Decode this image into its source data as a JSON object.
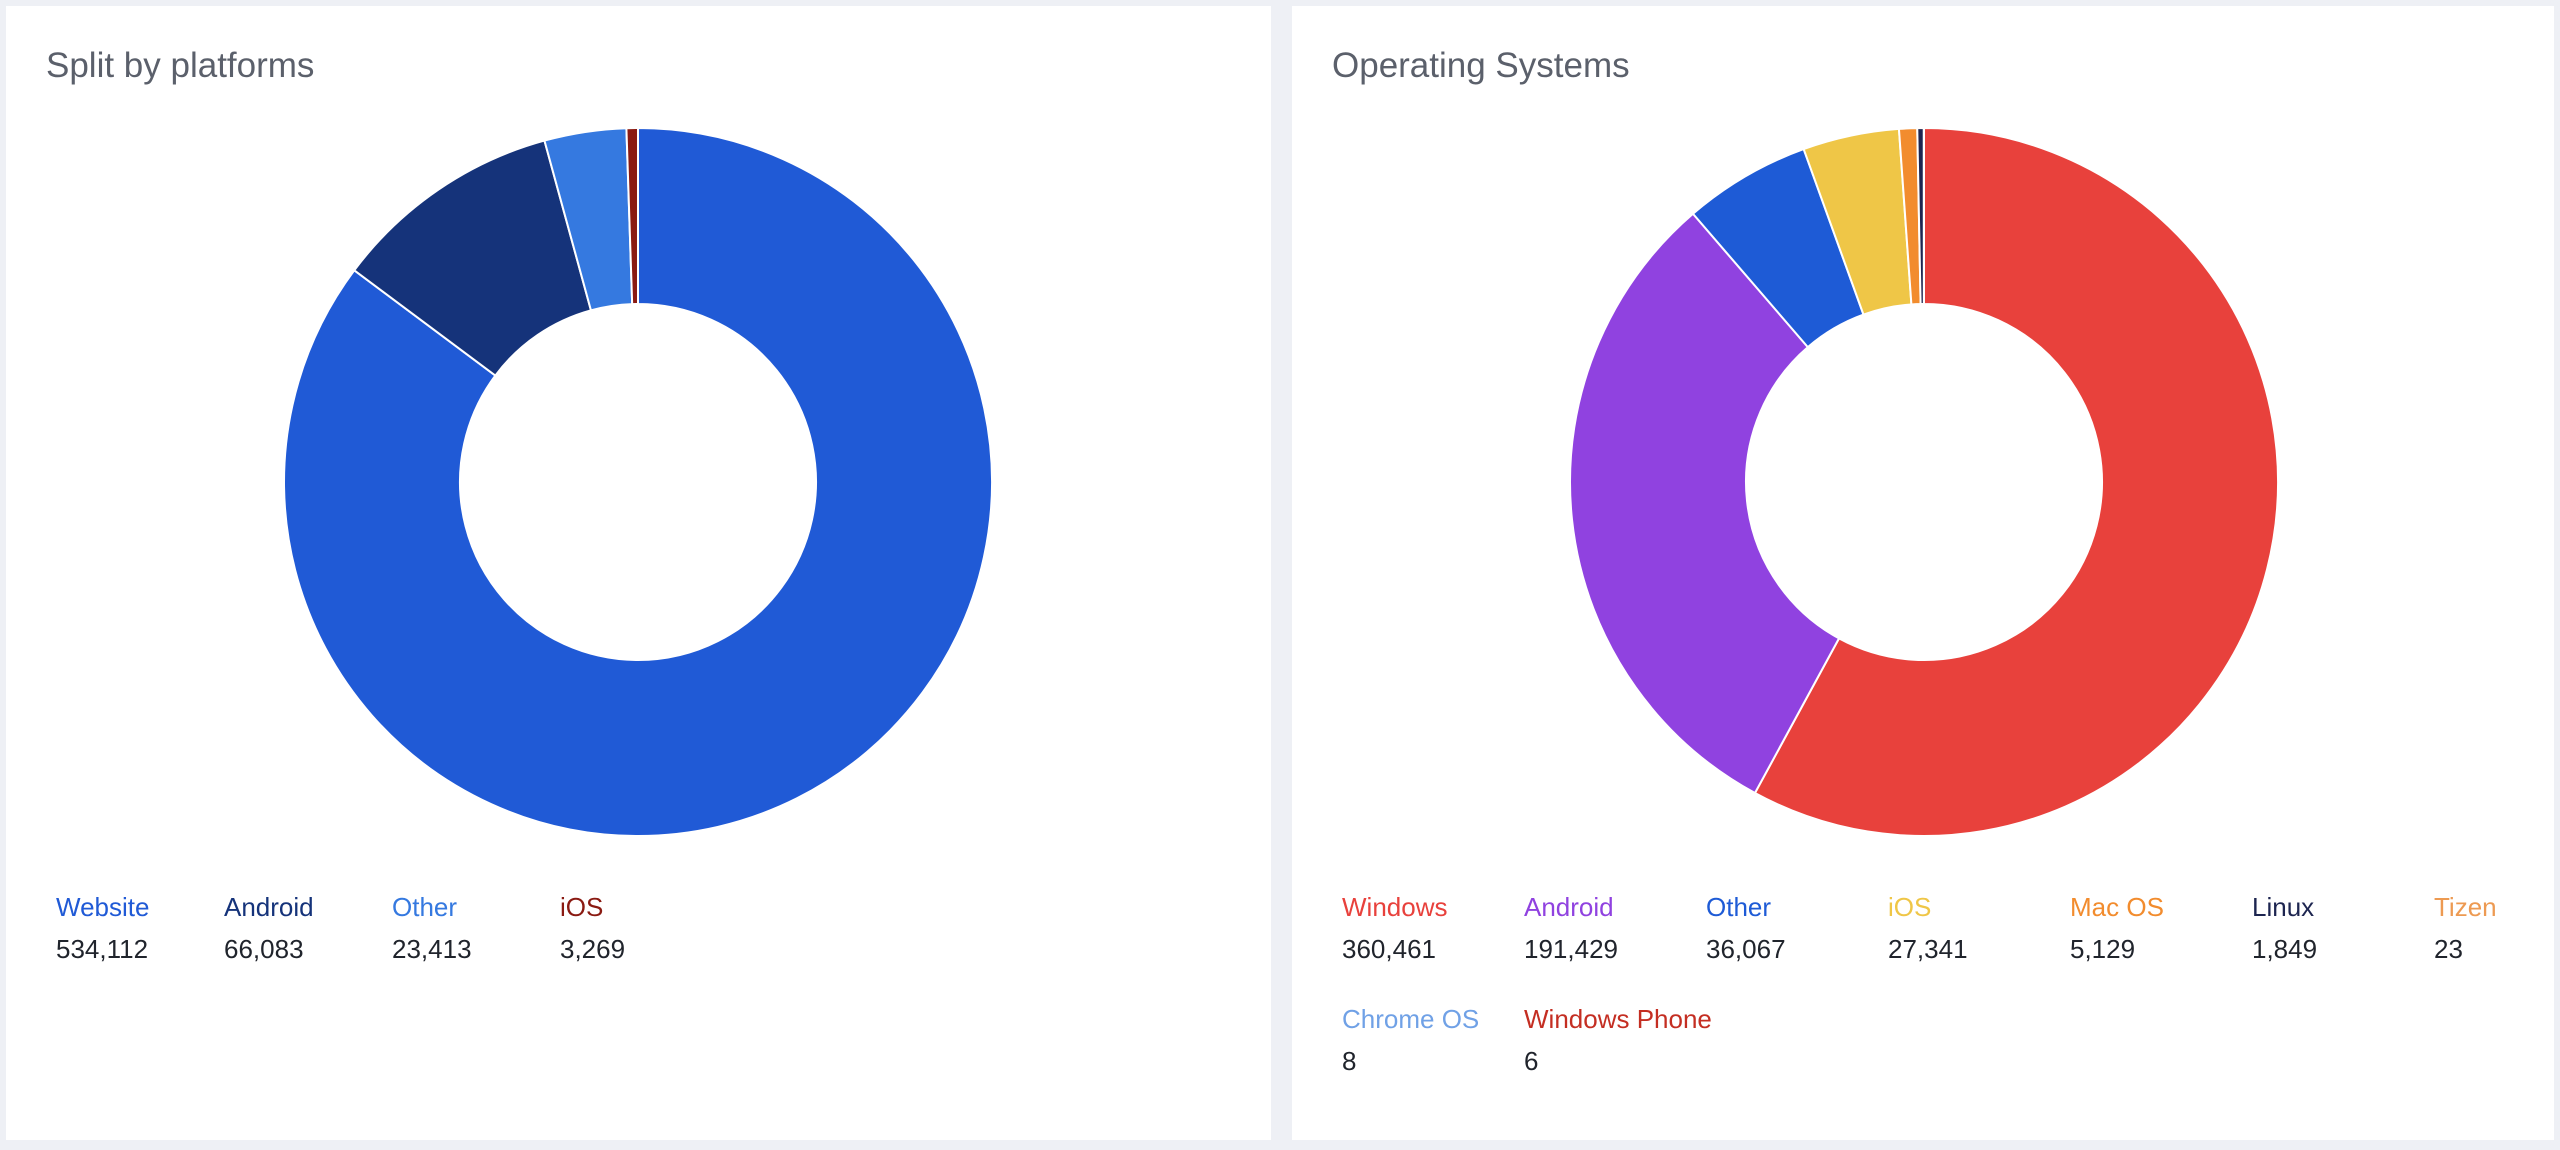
{
  "chart_data": [
    {
      "type": "pie",
      "title": "Split by platforms",
      "legend_position": "bottom",
      "slices": [
        {
          "name": "Website",
          "value": 534112,
          "display": "534,112",
          "color": "#205ad6"
        },
        {
          "name": "Android",
          "value": 66083,
          "display": "66,083",
          "color": "#15337a"
        },
        {
          "name": "Other",
          "value": 23413,
          "display": "23,413",
          "color": "#3579e0"
        },
        {
          "name": "iOS",
          "value": 3269,
          "display": "3,269",
          "color": "#8a1a12"
        }
      ]
    },
    {
      "type": "pie",
      "title": "Operating Systems",
      "legend_position": "bottom",
      "slices": [
        {
          "name": "Windows",
          "value": 360461,
          "display": "360,461",
          "color": "#e8413c"
        },
        {
          "name": "Android",
          "value": 191429,
          "display": "191,429",
          "color": "#9042e0"
        },
        {
          "name": "Other",
          "value": 36067,
          "display": "36,067",
          "color": "#1e5bd6"
        },
        {
          "name": "iOS",
          "value": 27341,
          "display": "27,341",
          "color": "#efc647"
        },
        {
          "name": "Mac OS",
          "value": 5129,
          "display": "5,129",
          "color": "#f28c2e"
        },
        {
          "name": "Linux",
          "value": 1849,
          "display": "1,849",
          "color": "#1d2550"
        },
        {
          "name": "Tizen",
          "value": 23,
          "display": "23",
          "color": "#ed9a52"
        },
        {
          "name": "Chrome OS",
          "value": 8,
          "display": "8",
          "color": "#70a1e6"
        },
        {
          "name": "Windows Phone",
          "value": 6,
          "display": "6",
          "color": "#c42e22"
        }
      ]
    }
  ]
}
